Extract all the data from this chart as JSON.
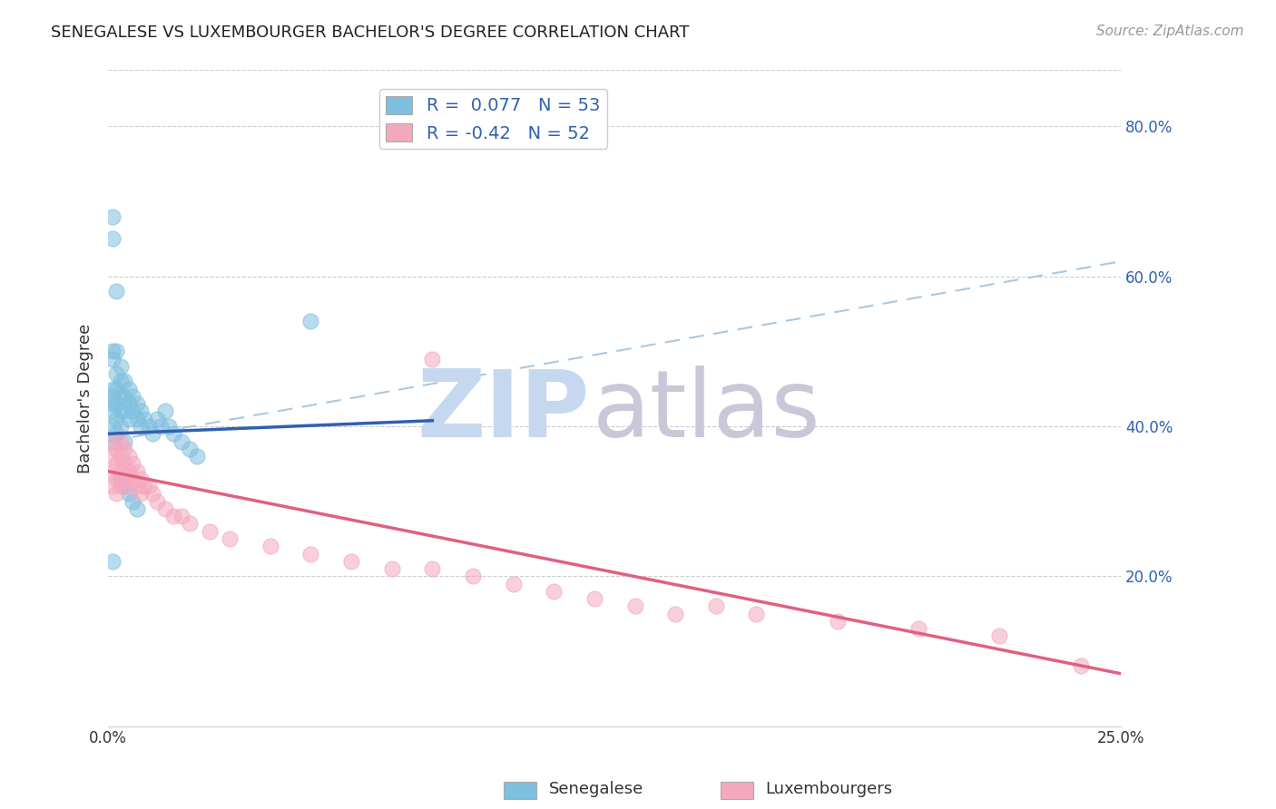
{
  "title": "SENEGALESE VS LUXEMBOURGER BACHELOR'S DEGREE CORRELATION CHART",
  "source": "Source: ZipAtlas.com",
  "ylabel": "Bachelor's Degree",
  "xlim": [
    0.0,
    0.25
  ],
  "ylim": [
    0.0,
    0.875
  ],
  "yticks": [
    0.2,
    0.4,
    0.6,
    0.8
  ],
  "ytick_labels": [
    "20.0%",
    "40.0%",
    "60.0%",
    "80.0%"
  ],
  "xticks": [
    0.0,
    0.05,
    0.1,
    0.15,
    0.2,
    0.25
  ],
  "xtick_labels": [
    "0.0%",
    "",
    "",
    "",
    "",
    "25.0%"
  ],
  "blue_color": "#7fbfdf",
  "pink_color": "#f4a8be",
  "blue_line_color": "#3060b0",
  "pink_line_color": "#e06080",
  "dashed_line_color": "#aac8e0",
  "watermark_zip_color": "#c5d8f0",
  "watermark_atlas_color": "#c8c8d8",
  "blue_R": 0.077,
  "blue_N": 53,
  "pink_R": -0.42,
  "pink_N": 52,
  "blue_line": [
    0.0,
    0.25,
    0.39,
    0.445
  ],
  "pink_line": [
    0.0,
    0.25,
    0.34,
    0.07
  ],
  "dashed_line": [
    0.0,
    0.25,
    0.38,
    0.62
  ],
  "senegalese_x": [
    0.001,
    0.001,
    0.001,
    0.001,
    0.001,
    0.001,
    0.002,
    0.002,
    0.002,
    0.002,
    0.002,
    0.003,
    0.003,
    0.003,
    0.003,
    0.003,
    0.004,
    0.004,
    0.004,
    0.004,
    0.005,
    0.005,
    0.005,
    0.006,
    0.006,
    0.007,
    0.007,
    0.008,
    0.008,
    0.009,
    0.01,
    0.011,
    0.012,
    0.013,
    0.014,
    0.015,
    0.016,
    0.018,
    0.02,
    0.022,
    0.001,
    0.001,
    0.002,
    0.003,
    0.004,
    0.005,
    0.006,
    0.007,
    0.001,
    0.001,
    0.001,
    0.002,
    0.05
  ],
  "senegalese_y": [
    0.45,
    0.44,
    0.43,
    0.42,
    0.4,
    0.38,
    0.47,
    0.45,
    0.43,
    0.41,
    0.39,
    0.48,
    0.46,
    0.44,
    0.42,
    0.4,
    0.46,
    0.44,
    0.42,
    0.38,
    0.45,
    0.43,
    0.41,
    0.44,
    0.42,
    0.43,
    0.41,
    0.42,
    0.4,
    0.41,
    0.4,
    0.39,
    0.41,
    0.4,
    0.42,
    0.4,
    0.39,
    0.38,
    0.37,
    0.36,
    0.5,
    0.49,
    0.5,
    0.33,
    0.32,
    0.31,
    0.3,
    0.29,
    0.68,
    0.65,
    0.22,
    0.58,
    0.54
  ],
  "luxembourger_x": [
    0.001,
    0.001,
    0.001,
    0.001,
    0.002,
    0.002,
    0.002,
    0.002,
    0.003,
    0.003,
    0.003,
    0.003,
    0.004,
    0.004,
    0.004,
    0.005,
    0.005,
    0.005,
    0.006,
    0.006,
    0.007,
    0.007,
    0.008,
    0.008,
    0.009,
    0.01,
    0.011,
    0.012,
    0.014,
    0.016,
    0.018,
    0.02,
    0.025,
    0.03,
    0.04,
    0.05,
    0.06,
    0.07,
    0.08,
    0.09,
    0.1,
    0.11,
    0.12,
    0.13,
    0.14,
    0.15,
    0.16,
    0.18,
    0.2,
    0.22,
    0.24,
    0.08
  ],
  "luxembourger_y": [
    0.38,
    0.36,
    0.34,
    0.32,
    0.37,
    0.35,
    0.33,
    0.31,
    0.38,
    0.36,
    0.34,
    0.32,
    0.37,
    0.35,
    0.33,
    0.36,
    0.34,
    0.32,
    0.35,
    0.33,
    0.34,
    0.32,
    0.33,
    0.31,
    0.32,
    0.32,
    0.31,
    0.3,
    0.29,
    0.28,
    0.28,
    0.27,
    0.26,
    0.25,
    0.24,
    0.23,
    0.22,
    0.21,
    0.21,
    0.2,
    0.19,
    0.18,
    0.17,
    0.16,
    0.15,
    0.16,
    0.15,
    0.14,
    0.13,
    0.12,
    0.08,
    0.49
  ]
}
